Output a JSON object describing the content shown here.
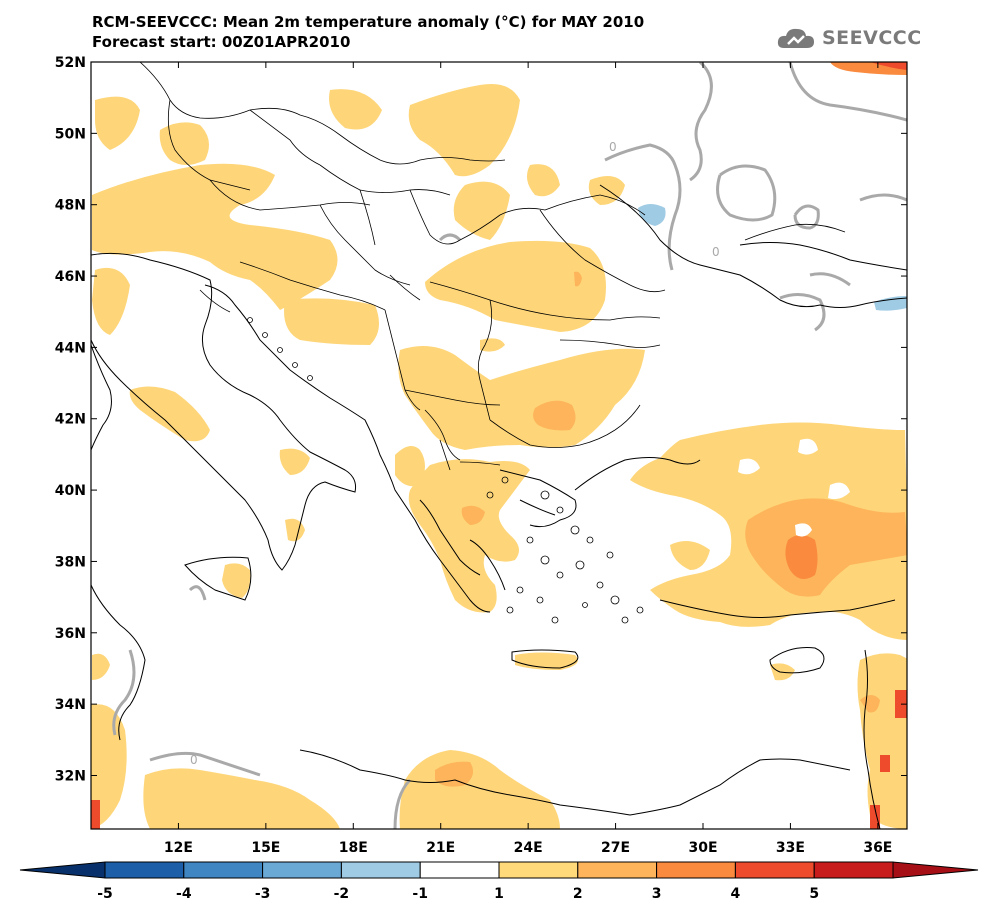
{
  "title_line1": "RCM-SEEVCCC: Mean 2m temperature anomaly (°C) for MAY 2010",
  "title_line2": "Forecast start: 00Z01APR2010",
  "logo_text": "SEEVCCC",
  "logo_icon": "cloud-icon",
  "map": {
    "lon_range": [
      9,
      37
    ],
    "lat_range": [
      30.5,
      52
    ],
    "x_ticks": [
      {
        "value": 12,
        "label": "12E"
      },
      {
        "value": 15,
        "label": "15E"
      },
      {
        "value": 18,
        "label": "18E"
      },
      {
        "value": 21,
        "label": "21E"
      },
      {
        "value": 24,
        "label": "24E"
      },
      {
        "value": 27,
        "label": "27E"
      },
      {
        "value": 30,
        "label": "30E"
      },
      {
        "value": 33,
        "label": "33E"
      },
      {
        "value": 36,
        "label": "36E"
      }
    ],
    "y_ticks": [
      {
        "value": 52,
        "label": "52N"
      },
      {
        "value": 50,
        "label": "50N"
      },
      {
        "value": 48,
        "label": "48N"
      },
      {
        "value": 46,
        "label": "46N"
      },
      {
        "value": 44,
        "label": "44N"
      },
      {
        "value": 42,
        "label": "42N"
      },
      {
        "value": 40,
        "label": "40N"
      },
      {
        "value": 38,
        "label": "38N"
      },
      {
        "value": 36,
        "label": "36N"
      },
      {
        "value": 34,
        "label": "34N"
      },
      {
        "value": 32,
        "label": "32N"
      }
    ],
    "contour_label": "0"
  },
  "colorbar": {
    "labels": [
      "-5",
      "-4",
      "-3",
      "-2",
      "-1",
      "1",
      "2",
      "3",
      "4",
      "5"
    ],
    "colors": [
      "#1c5ea8",
      "#3f86c2",
      "#6aa9d6",
      "#9fcbe4",
      "#ffffff",
      "#ffd97a",
      "#fdb45a",
      "#f98a3e",
      "#ee4a2c",
      "#c81b1b"
    ],
    "left_arrow_color": "#08306b",
    "right_arrow_color": "#a50f15"
  },
  "fill_colors": {
    "cat1": "#fed679",
    "cat2": "#fdb45a",
    "cat3": "#f98a3e",
    "cat4": "#ee4a2c",
    "cat5": "#c81b1b",
    "neg1": "#9fcbe4",
    "contour": "#a9a9a9"
  }
}
